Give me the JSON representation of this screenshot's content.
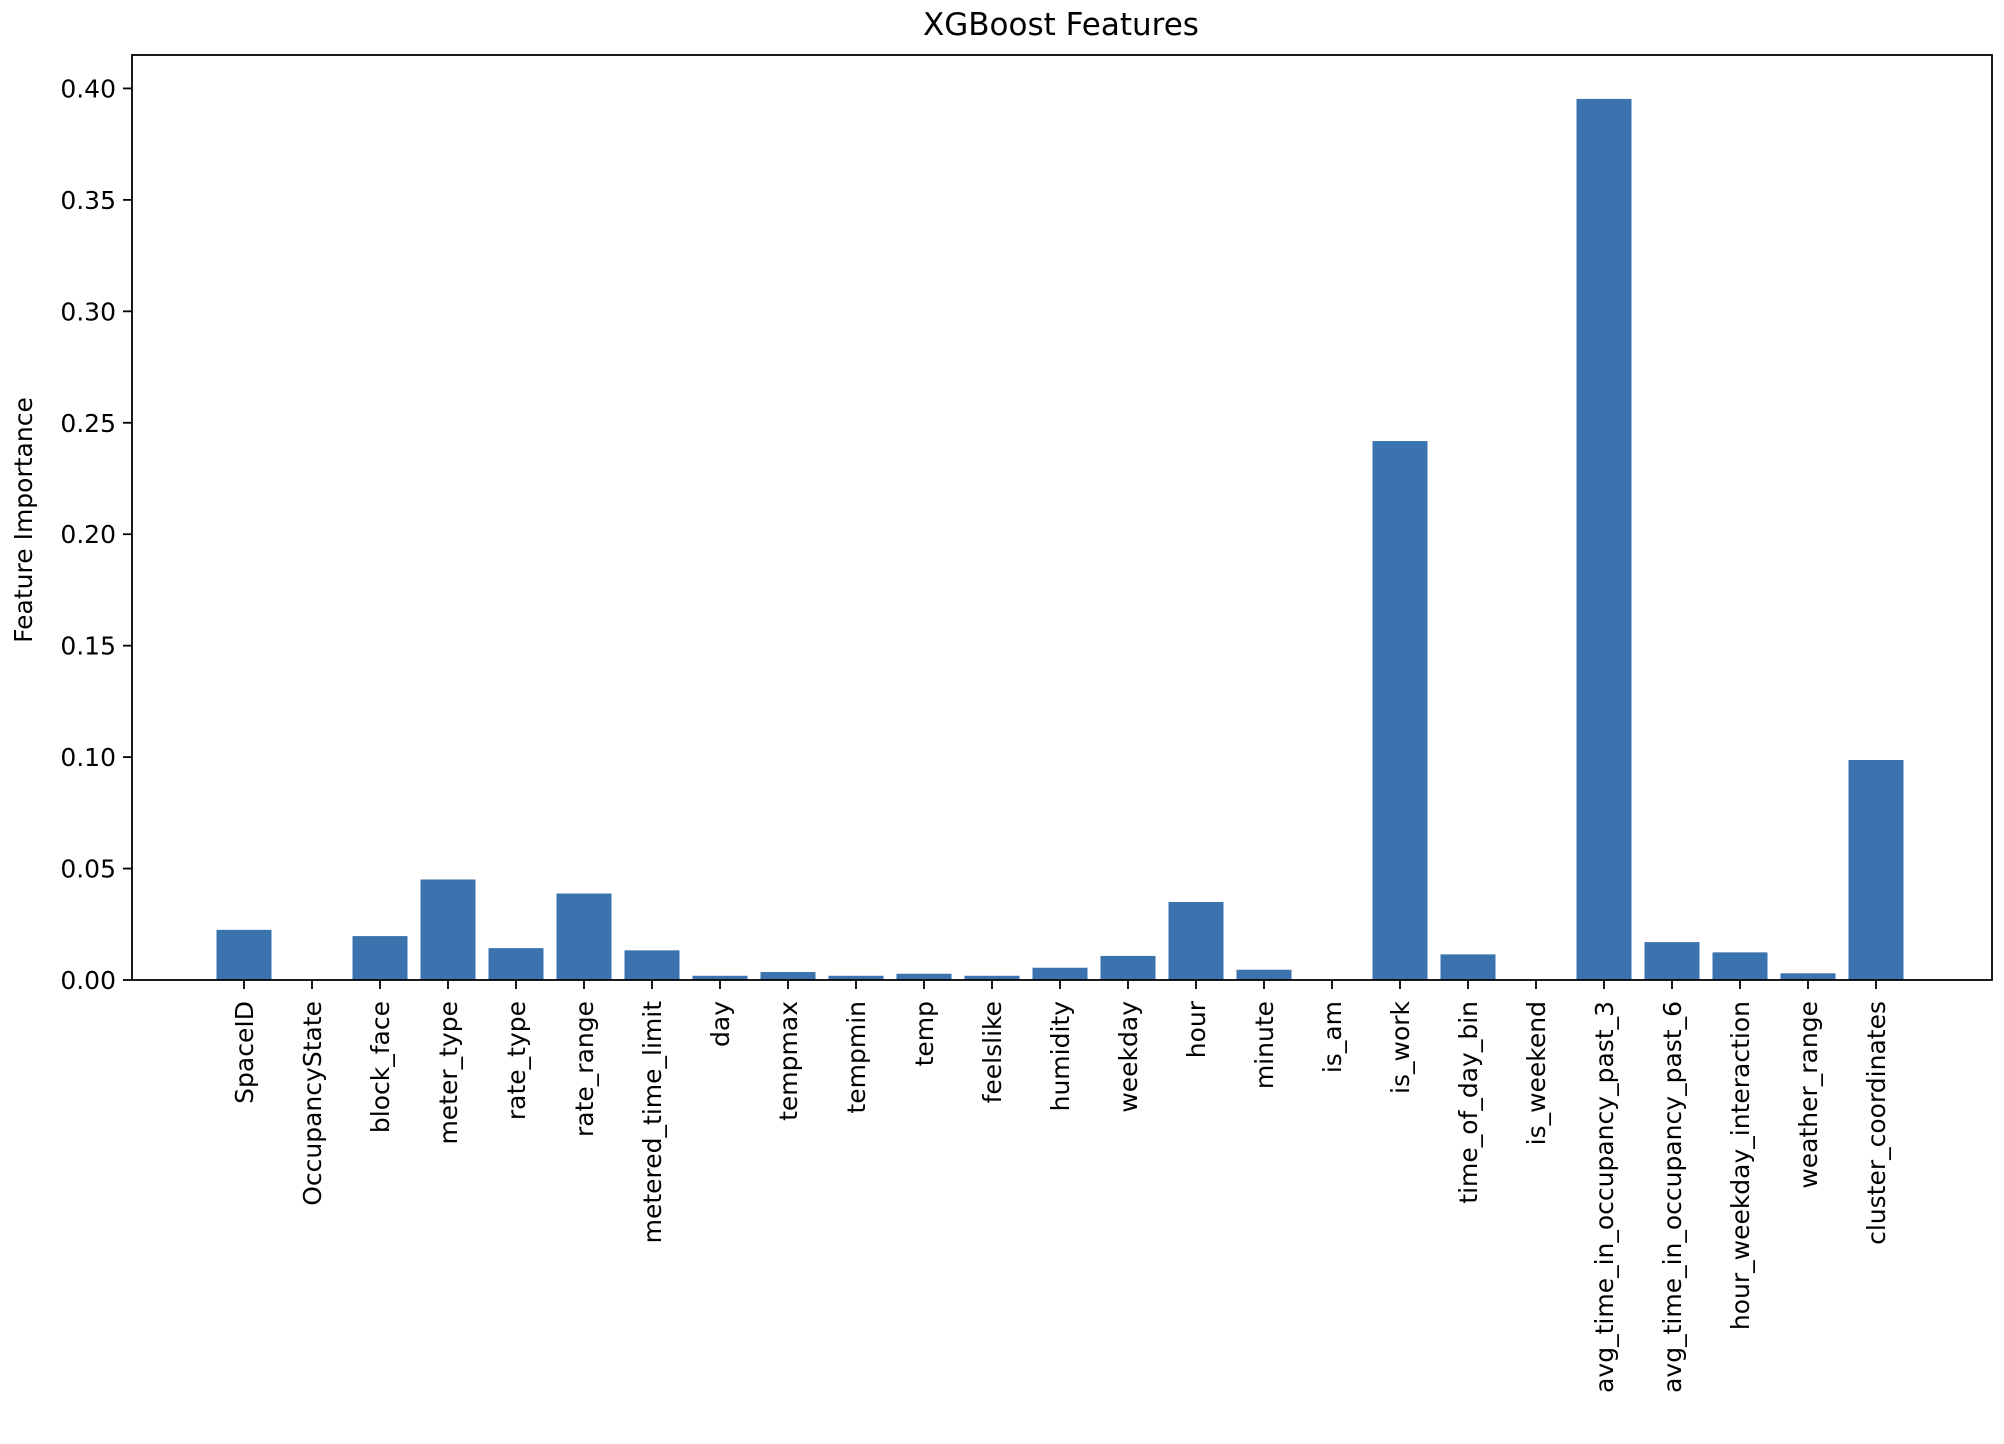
{
  "chart_data": {
    "type": "bar",
    "title": "XGBoost Features",
    "xlabel": "",
    "ylabel": "Feature Importance",
    "ylim": [
      0,
      0.415
    ],
    "yticks": [
      "0.00",
      "0.05",
      "0.10",
      "0.15",
      "0.20",
      "0.25",
      "0.30",
      "0.35",
      "0.40"
    ],
    "grid": false,
    "bar_color": "#3b73ae",
    "categories": [
      "SpaceID",
      "OccupancyState",
      "block_face",
      "meter_type",
      "rate_type",
      "rate_range",
      "metered_time_limit",
      "day",
      "tempmax",
      "tempmin",
      "temp",
      "feelslike",
      "humidity",
      "weekday",
      "hour",
      "minute",
      "is_am",
      "is_work",
      "time_of_day_bin",
      "is_weekend",
      "avg_time_in_occupancy_past_3",
      "avg_time_in_occupancy_past_6",
      "hour_weekday_interaction",
      "weather_range",
      "cluster_coordinates"
    ],
    "values": [
      0.0225,
      0.0,
      0.0197,
      0.0451,
      0.0143,
      0.0388,
      0.0133,
      0.0019,
      0.0036,
      0.0019,
      0.0028,
      0.0019,
      0.0055,
      0.0108,
      0.035,
      0.0046,
      0.0,
      0.2418,
      0.0115,
      0.0,
      0.3953,
      0.017,
      0.0124,
      0.003,
      0.0987
    ]
  }
}
